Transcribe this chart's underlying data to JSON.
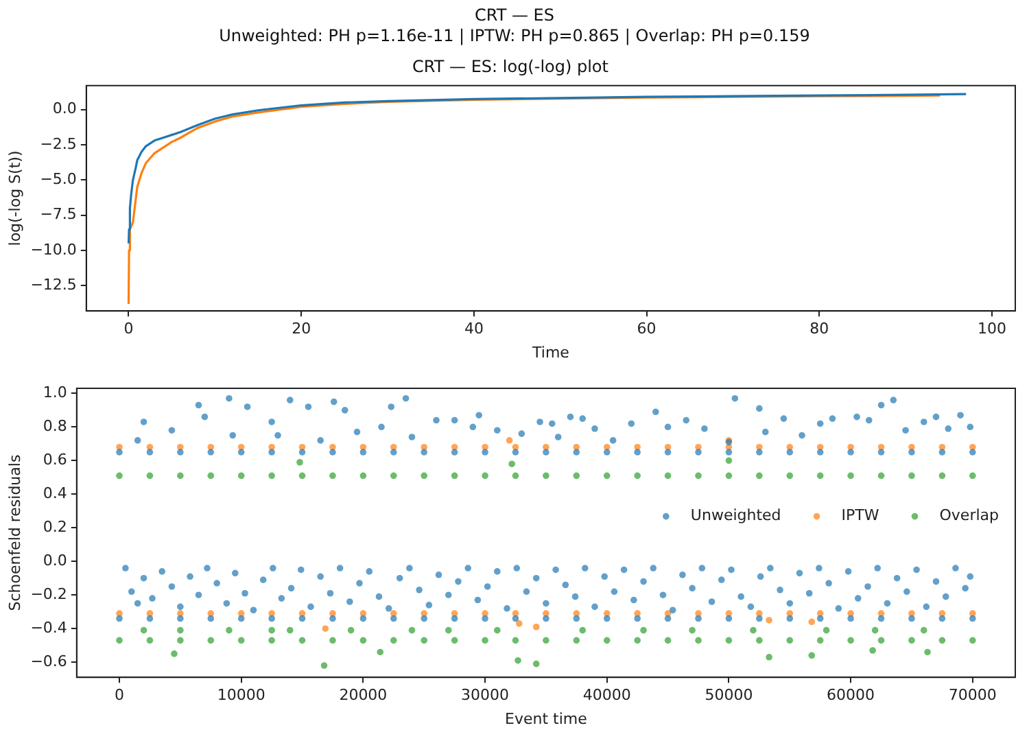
{
  "chart_data": [
    {
      "type": "line",
      "title": "CRT — ES: log(-log) plot",
      "annotations": [
        "CRT — ES",
        "Unweighted: PH p=1.16e-11 | IPTW: PH p=0.865 | Overlap: PH p=0.159"
      ],
      "xlabel": "Time",
      "ylabel": "log(-log S(t))",
      "xlim": [
        -4.9,
        102.7
      ],
      "ylim": [
        -14.3,
        1.7
      ],
      "xticks": [
        0,
        20,
        40,
        60,
        80,
        100
      ],
      "yticks": [
        {
          "value": 0,
          "label": "0.0"
        },
        {
          "value": -2.5,
          "label": "−2.5"
        },
        {
          "value": -5,
          "label": "−5.0"
        },
        {
          "value": -7.5,
          "label": "−7.5"
        },
        {
          "value": -10,
          "label": "−10.0"
        },
        {
          "value": -12.5,
          "label": "−12.5"
        }
      ],
      "grid": false,
      "marker": "none",
      "legend": false,
      "series": [
        {
          "color": "#1f77b4",
          "x": [
            0,
            0.05,
            0.15,
            0.3,
            0.5,
            0.8,
            1,
            1.5,
            2,
            3,
            4,
            5,
            6,
            8,
            10,
            12,
            15,
            20,
            25,
            30,
            40,
            50,
            60,
            70,
            80,
            90,
            97
          ],
          "values": [
            -9.5,
            -8.5,
            -7,
            -6,
            -5,
            -4.2,
            -3.6,
            -3,
            -2.6,
            -2.2,
            -2,
            -1.8,
            -1.6,
            -1.1,
            -0.65,
            -0.35,
            -0.05,
            0.3,
            0.5,
            0.6,
            0.75,
            0.82,
            0.9,
            0.95,
            1,
            1.05,
            1.1
          ]
        },
        {
          "color": "#ff7f0e",
          "x": [
            0,
            0.05,
            0.15,
            0.3,
            0.5,
            0.8,
            1,
            1.5,
            2,
            3,
            4,
            5,
            6,
            8,
            10,
            12,
            15,
            20,
            25,
            30,
            40,
            50,
            60,
            70,
            80,
            90,
            94
          ],
          "values": [
            -13.8,
            -10,
            -8.5,
            -8.3,
            -8,
            -6.5,
            -5.5,
            -4.5,
            -3.8,
            -3.1,
            -2.7,
            -2.3,
            -2,
            -1.3,
            -0.85,
            -0.5,
            -0.2,
            0.2,
            0.4,
            0.55,
            0.7,
            0.78,
            0.85,
            0.9,
            0.95,
            0.98,
            1
          ]
        }
      ]
    },
    {
      "type": "scatter",
      "xlabel": "Event time",
      "ylabel": "Schoenfeld residuals",
      "xlim": [
        -3500,
        73500
      ],
      "ylim": [
        -0.69,
        1.03
      ],
      "xticks": [
        0,
        10000,
        20000,
        30000,
        40000,
        50000,
        60000,
        70000
      ],
      "yticks": [
        {
          "value": -0.6,
          "label": "−0.6"
        },
        {
          "value": -0.4,
          "label": "−0.4"
        },
        {
          "value": -0.2,
          "label": "−0.2"
        },
        {
          "value": 0,
          "label": "0.0"
        },
        {
          "value": 0.2,
          "label": "0.2"
        },
        {
          "value": 0.4,
          "label": "0.4"
        },
        {
          "value": 0.6,
          "label": "0.6"
        },
        {
          "value": 0.8,
          "label": "0.8"
        },
        {
          "value": 1,
          "label": "1.0"
        }
      ],
      "grid": false,
      "marker": "circle",
      "legend": "right",
      "series": [
        {
          "name": "Unweighted",
          "color": "#1f77b4",
          "x": [
            0,
            2500,
            5000,
            7500,
            10000,
            12500,
            15000,
            17500,
            20000,
            22500,
            25000,
            27500,
            30000,
            32500,
            35000,
            37500,
            40000,
            42500,
            45000,
            47500,
            50000,
            52500,
            55000,
            57500,
            60000,
            62500,
            65000,
            67500,
            70000,
            0,
            2500,
            5000,
            7500,
            10000,
            12500,
            15000,
            17500,
            20000,
            22500,
            25000,
            27500,
            30000,
            32500,
            35000,
            37500,
            40000,
            42500,
            45000,
            47500,
            50000,
            52500,
            55000,
            57500,
            60000,
            62500,
            65000,
            67500,
            70000,
            1500,
            2000,
            4300,
            6500,
            7000,
            9000,
            9300,
            10500,
            12500,
            13000,
            14000,
            15500,
            16500,
            17600,
            18500,
            19500,
            21500,
            22300,
            23500,
            24000,
            26000,
            27500,
            29000,
            29500,
            31000,
            33000,
            34500,
            35500,
            36000,
            37000,
            38000,
            39000,
            40500,
            42000,
            44000,
            45000,
            46500,
            48000,
            50000,
            50500,
            52500,
            53000,
            54500,
            56000,
            57500,
            58500,
            60500,
            61500,
            62500,
            63500,
            64500,
            66000,
            67000,
            68000,
            69000,
            69800,
            500,
            1000,
            1500,
            2000,
            2700,
            3500,
            4300,
            5000,
            5800,
            6500,
            7200,
            8000,
            8800,
            9500,
            10300,
            11000,
            11800,
            12600,
            13300,
            14100,
            14900,
            15700,
            16500,
            17300,
            18100,
            18900,
            19700,
            20500,
            21300,
            22100,
            23000,
            23800,
            24600,
            25400,
            26200,
            27000,
            27800,
            28600,
            29400,
            30200,
            31000,
            31800,
            32600,
            33400,
            34200,
            35000,
            35800,
            36600,
            37400,
            38200,
            39000,
            39800,
            40600,
            41400,
            42200,
            43000,
            43800,
            44600,
            45400,
            46200,
            47000,
            47800,
            48600,
            49400,
            50200,
            51000,
            51800,
            52600,
            53400,
            54200,
            55000,
            55800,
            56600,
            57400,
            58200,
            59000,
            59800,
            60600,
            61400,
            62200,
            63000,
            63800,
            64600,
            65400,
            66200,
            67000,
            67800,
            68600,
            69400,
            69800
          ],
          "values": [
            0.65,
            0.65,
            0.65,
            0.65,
            0.65,
            0.65,
            0.65,
            0.65,
            0.65,
            0.65,
            0.65,
            0.65,
            0.65,
            0.65,
            0.65,
            0.65,
            0.65,
            0.65,
            0.65,
            0.65,
            0.65,
            0.65,
            0.65,
            0.65,
            0.65,
            0.65,
            0.65,
            0.65,
            0.65,
            -0.34,
            -0.34,
            -0.34,
            -0.34,
            -0.34,
            -0.34,
            -0.34,
            -0.34,
            -0.34,
            -0.34,
            -0.34,
            -0.34,
            -0.34,
            -0.34,
            -0.34,
            -0.34,
            -0.34,
            -0.34,
            -0.34,
            -0.34,
            -0.34,
            -0.34,
            -0.34,
            -0.34,
            -0.34,
            -0.34,
            -0.34,
            -0.34,
            -0.34,
            0.72,
            0.83,
            0.78,
            0.93,
            0.86,
            0.97,
            0.75,
            0.92,
            0.83,
            0.75,
            0.96,
            0.92,
            0.72,
            0.95,
            0.9,
            0.77,
            0.8,
            0.92,
            0.97,
            0.74,
            0.84,
            0.84,
            0.8,
            0.87,
            0.78,
            0.76,
            0.83,
            0.82,
            0.74,
            0.86,
            0.85,
            0.79,
            0.72,
            0.82,
            0.89,
            0.8,
            0.84,
            0.79,
            0.71,
            0.97,
            0.91,
            0.77,
            0.85,
            0.75,
            0.82,
            0.85,
            0.86,
            0.84,
            0.93,
            0.96,
            0.78,
            0.83,
            0.86,
            0.79,
            0.87,
            0.8,
            -0.04,
            -0.18,
            -0.25,
            -0.1,
            -0.22,
            -0.06,
            -0.15,
            -0.27,
            -0.09,
            -0.2,
            -0.04,
            -0.13,
            -0.25,
            -0.07,
            -0.19,
            -0.29,
            -0.11,
            -0.04,
            -0.22,
            -0.16,
            -0.05,
            -0.27,
            -0.09,
            -0.19,
            -0.04,
            -0.24,
            -0.13,
            -0.06,
            -0.21,
            -0.28,
            -0.1,
            -0.04,
            -0.17,
            -0.26,
            -0.08,
            -0.2,
            -0.12,
            -0.04,
            -0.23,
            -0.15,
            -0.06,
            -0.28,
            -0.04,
            -0.18,
            -0.1,
            -0.25,
            -0.05,
            -0.14,
            -0.21,
            -0.04,
            -0.27,
            -0.09,
            -0.18,
            -0.05,
            -0.23,
            -0.12,
            -0.04,
            -0.2,
            -0.29,
            -0.08,
            -0.16,
            -0.04,
            -0.24,
            -0.11,
            -0.05,
            -0.21,
            -0.27,
            -0.09,
            -0.04,
            -0.17,
            -0.25,
            -0.07,
            -0.19,
            -0.04,
            -0.13,
            -0.28,
            -0.06,
            -0.22,
            -0.15,
            -0.04,
            -0.25,
            -0.1,
            -0.18,
            -0.05,
            -0.27,
            -0.12,
            -0.21,
            -0.04,
            -0.16,
            -0.09
          ]
        },
        {
          "name": "IPTW",
          "color": "#ff7f0e",
          "x": [
            0,
            2500,
            5000,
            7500,
            10000,
            12500,
            15000,
            17500,
            20000,
            22500,
            25000,
            27500,
            30000,
            32500,
            35000,
            37500,
            40000,
            42500,
            45000,
            47500,
            50000,
            52500,
            55000,
            57500,
            60000,
            62500,
            65000,
            67500,
            70000,
            0,
            2500,
            5000,
            7500,
            10000,
            12500,
            15000,
            17500,
            20000,
            22500,
            25000,
            27500,
            30000,
            32500,
            35000,
            37500,
            40000,
            42500,
            45000,
            47500,
            50000,
            52500,
            55000,
            57500,
            60000,
            62500,
            65000,
            67500,
            70000,
            32000,
            50000,
            16900,
            32800,
            34200,
            53300,
            56800
          ],
          "values": [
            0.68,
            0.68,
            0.68,
            0.68,
            0.68,
            0.68,
            0.68,
            0.68,
            0.68,
            0.68,
            0.68,
            0.68,
            0.68,
            0.68,
            0.68,
            0.68,
            0.68,
            0.68,
            0.68,
            0.68,
            0.68,
            0.68,
            0.68,
            0.68,
            0.68,
            0.68,
            0.68,
            0.68,
            0.68,
            -0.31,
            -0.31,
            -0.31,
            -0.31,
            -0.31,
            -0.31,
            -0.31,
            -0.31,
            -0.31,
            -0.31,
            -0.31,
            -0.31,
            -0.31,
            -0.31,
            -0.31,
            -0.31,
            -0.31,
            -0.31,
            -0.31,
            -0.31,
            -0.31,
            -0.31,
            -0.31,
            -0.31,
            -0.31,
            -0.31,
            -0.31,
            -0.31,
            -0.31,
            0.72,
            0.72,
            -0.4,
            -0.37,
            -0.39,
            -0.35,
            -0.36
          ]
        },
        {
          "name": "Overlap",
          "color": "#2ca02c",
          "x": [
            0,
            2500,
            5000,
            7500,
            10000,
            12500,
            15000,
            17500,
            20000,
            22500,
            25000,
            27500,
            30000,
            32500,
            35000,
            37500,
            40000,
            42500,
            45000,
            47500,
            50000,
            52500,
            55000,
            57500,
            60000,
            62500,
            65000,
            67500,
            70000,
            14800,
            32200,
            50000,
            0,
            2500,
            5000,
            7500,
            10000,
            12500,
            15000,
            17500,
            20000,
            22500,
            25000,
            27500,
            30000,
            32500,
            35000,
            37500,
            40000,
            42500,
            45000,
            47500,
            50000,
            52500,
            55000,
            57500,
            60000,
            62500,
            65000,
            67500,
            70000,
            2000,
            5000,
            9000,
            12500,
            14000,
            19000,
            24000,
            27000,
            31000,
            38000,
            43000,
            47000,
            52000,
            58000,
            62000,
            66000,
            4500,
            16800,
            21400,
            32700,
            34200,
            53300,
            56800,
            61800,
            66300
          ],
          "values": [
            0.51,
            0.51,
            0.51,
            0.51,
            0.51,
            0.51,
            0.51,
            0.51,
            0.51,
            0.51,
            0.51,
            0.51,
            0.51,
            0.51,
            0.51,
            0.51,
            0.51,
            0.51,
            0.51,
            0.51,
            0.51,
            0.51,
            0.51,
            0.51,
            0.51,
            0.51,
            0.51,
            0.51,
            0.51,
            0.59,
            0.58,
            0.6,
            -0.47,
            -0.47,
            -0.47,
            -0.47,
            -0.47,
            -0.47,
            -0.47,
            -0.47,
            -0.47,
            -0.47,
            -0.47,
            -0.47,
            -0.47,
            -0.47,
            -0.47,
            -0.47,
            -0.47,
            -0.47,
            -0.47,
            -0.47,
            -0.47,
            -0.47,
            -0.47,
            -0.47,
            -0.47,
            -0.47,
            -0.47,
            -0.47,
            -0.47,
            -0.41,
            -0.41,
            -0.41,
            -0.41,
            -0.41,
            -0.41,
            -0.41,
            -0.41,
            -0.41,
            -0.41,
            -0.41,
            -0.41,
            -0.41,
            -0.41,
            -0.41,
            -0.41,
            -0.55,
            -0.62,
            -0.54,
            -0.59,
            -0.61,
            -0.57,
            -0.56,
            -0.53,
            -0.54
          ]
        }
      ]
    }
  ]
}
